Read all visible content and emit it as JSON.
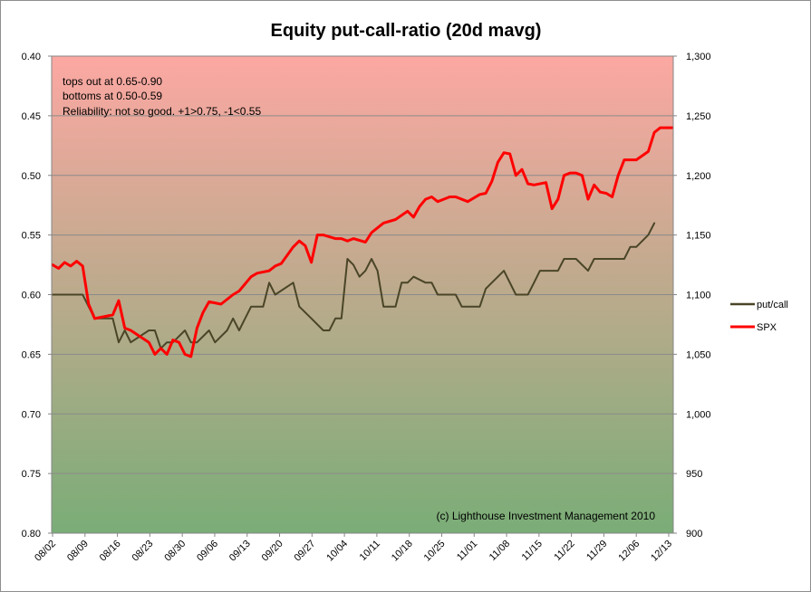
{
  "chart_data": {
    "type": "line",
    "title": "Equity put-call-ratio (20d mavg)",
    "x_categories": [
      "08/02",
      "08/09",
      "08/16",
      "08/23",
      "08/30",
      "09/06",
      "09/13",
      "09/20",
      "09/27",
      "10/04",
      "10/11",
      "10/18",
      "10/25",
      "11/01",
      "11/08",
      "11/15",
      "11/22",
      "11/29",
      "12/06",
      "12/13"
    ],
    "y_left": {
      "min": 0.4,
      "max": 0.8,
      "reversed": true,
      "ticks": [
        "0.40",
        "0.45",
        "0.50",
        "0.55",
        "0.60",
        "0.65",
        "0.70",
        "0.75",
        "0.80"
      ]
    },
    "y_right": {
      "min": 900,
      "max": 1300,
      "ticks": [
        "1,300",
        "1,250",
        "1,200",
        "1,150",
        "1,100",
        "1,050",
        "1,000",
        "950",
        "900"
      ]
    },
    "background_gradient": {
      "top": "#fca8a2",
      "bottom": "#7aad77"
    },
    "grid": true,
    "legend_position": "right",
    "annotations": [
      "tops out at 0.65-0.90",
      "bottoms at 0.50-0.59",
      "Reliability: not so good. +1>0.75, -1<0.55"
    ],
    "credit": "(c) Lighthouse Investment Management 2010",
    "series": [
      {
        "name": "put/call",
        "axis": "left",
        "color": "#4a4527",
        "points": [
          [
            0,
            0.6
          ],
          [
            5,
            0.6
          ],
          [
            6,
            0.61
          ],
          [
            7,
            0.62
          ],
          [
            10,
            0.62
          ],
          [
            11,
            0.64
          ],
          [
            12,
            0.63
          ],
          [
            13,
            0.64
          ],
          [
            16,
            0.63
          ],
          [
            17,
            0.63
          ],
          [
            18,
            0.645
          ],
          [
            19,
            0.64
          ],
          [
            20,
            0.64
          ],
          [
            22,
            0.63
          ],
          [
            23,
            0.64
          ],
          [
            24,
            0.64
          ],
          [
            26,
            0.63
          ],
          [
            27,
            0.64
          ],
          [
            29,
            0.63
          ],
          [
            30,
            0.62
          ],
          [
            31,
            0.63
          ],
          [
            32,
            0.62
          ],
          [
            33,
            0.61
          ],
          [
            35,
            0.61
          ],
          [
            36,
            0.59
          ],
          [
            37,
            0.6
          ],
          [
            40,
            0.59
          ],
          [
            41,
            0.61
          ],
          [
            43,
            0.62
          ],
          [
            45,
            0.63
          ],
          [
            46,
            0.63
          ],
          [
            47,
            0.62
          ],
          [
            48,
            0.62
          ],
          [
            49,
            0.57
          ],
          [
            50,
            0.575
          ],
          [
            51,
            0.585
          ],
          [
            52,
            0.58
          ],
          [
            53,
            0.57
          ],
          [
            54,
            0.58
          ],
          [
            55,
            0.61
          ],
          [
            57,
            0.61
          ],
          [
            58,
            0.59
          ],
          [
            59,
            0.59
          ],
          [
            60,
            0.585
          ],
          [
            62,
            0.59
          ],
          [
            63,
            0.59
          ],
          [
            64,
            0.6
          ],
          [
            67,
            0.6
          ],
          [
            68,
            0.61
          ],
          [
            71,
            0.61
          ],
          [
            72,
            0.595
          ],
          [
            75,
            0.58
          ],
          [
            76,
            0.59
          ],
          [
            77,
            0.6
          ],
          [
            79,
            0.6
          ],
          [
            80,
            0.59
          ],
          [
            81,
            0.58
          ],
          [
            84,
            0.58
          ],
          [
            85,
            0.57
          ],
          [
            87,
            0.57
          ],
          [
            89,
            0.58
          ],
          [
            90,
            0.57
          ],
          [
            95,
            0.57
          ],
          [
            96,
            0.56
          ],
          [
            97,
            0.56
          ],
          [
            99,
            0.55
          ],
          [
            100,
            0.54
          ]
        ]
      },
      {
        "name": "SPX",
        "axis": "right",
        "color": "#ff0000",
        "points": [
          [
            0,
            1125
          ],
          [
            1,
            1122
          ],
          [
            2,
            1127
          ],
          [
            3,
            1124
          ],
          [
            4,
            1128
          ],
          [
            5,
            1124
          ],
          [
            6,
            1092
          ],
          [
            7,
            1080
          ],
          [
            10,
            1083
          ],
          [
            11,
            1095
          ],
          [
            12,
            1072
          ],
          [
            13,
            1070
          ],
          [
            16,
            1060
          ],
          [
            17,
            1050
          ],
          [
            18,
            1055
          ],
          [
            19,
            1050
          ],
          [
            20,
            1062
          ],
          [
            21,
            1060
          ],
          [
            22,
            1050
          ],
          [
            23,
            1048
          ],
          [
            24,
            1072
          ],
          [
            25,
            1085
          ],
          [
            26,
            1094
          ],
          [
            28,
            1092
          ],
          [
            30,
            1100
          ],
          [
            31,
            1103
          ],
          [
            33,
            1115
          ],
          [
            34,
            1118
          ],
          [
            36,
            1120
          ],
          [
            37,
            1124
          ],
          [
            38,
            1126
          ],
          [
            40,
            1140
          ],
          [
            41,
            1145
          ],
          [
            42,
            1141
          ],
          [
            43,
            1127
          ],
          [
            44,
            1150
          ],
          [
            45,
            1150
          ],
          [
            47,
            1147
          ],
          [
            48,
            1147
          ],
          [
            49,
            1145
          ],
          [
            50,
            1147
          ],
          [
            52,
            1144
          ],
          [
            53,
            1152
          ],
          [
            55,
            1160
          ],
          [
            57,
            1163
          ],
          [
            59,
            1170
          ],
          [
            60,
            1165
          ],
          [
            61,
            1174
          ],
          [
            62,
            1180
          ],
          [
            63,
            1182
          ],
          [
            64,
            1178
          ],
          [
            65,
            1180
          ],
          [
            66,
            1182
          ],
          [
            67,
            1182
          ],
          [
            69,
            1178
          ],
          [
            71,
            1184
          ],
          [
            72,
            1185
          ],
          [
            73,
            1195
          ],
          [
            74,
            1211
          ],
          [
            75,
            1219
          ],
          [
            76,
            1218
          ],
          [
            77,
            1200
          ],
          [
            78,
            1205
          ],
          [
            79,
            1193
          ],
          [
            80,
            1192
          ],
          [
            82,
            1194
          ],
          [
            83,
            1172
          ],
          [
            84,
            1180
          ],
          [
            85,
            1200
          ],
          [
            86,
            1202
          ],
          [
            87,
            1202
          ],
          [
            88,
            1200
          ],
          [
            89,
            1180
          ],
          [
            90,
            1192
          ],
          [
            91,
            1186
          ],
          [
            92,
            1185
          ],
          [
            93,
            1182
          ],
          [
            94,
            1200
          ],
          [
            95,
            1213
          ],
          [
            97,
            1213
          ],
          [
            99,
            1220
          ],
          [
            100,
            1236
          ],
          [
            101,
            1240
          ],
          [
            103,
            1240
          ]
        ]
      }
    ]
  }
}
